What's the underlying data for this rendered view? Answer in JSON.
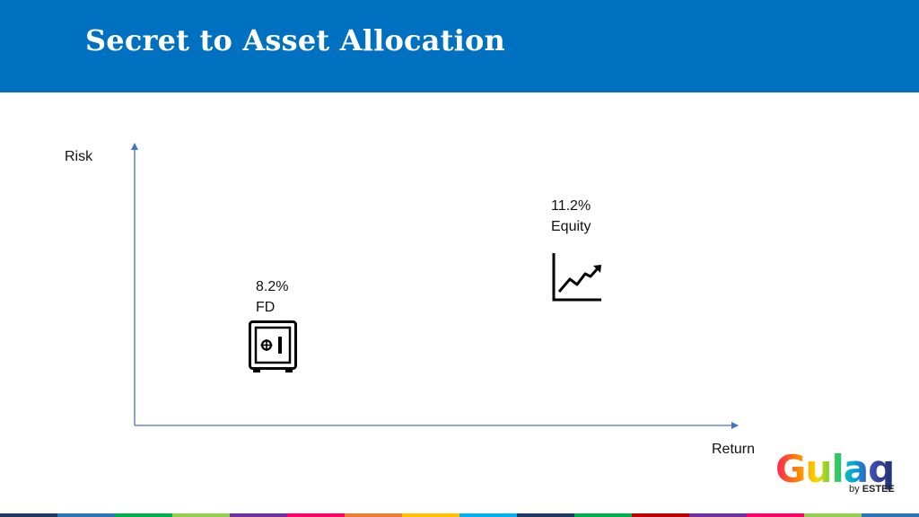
{
  "header": {
    "title": "Secret to Asset Allocation",
    "background": "#0070c0"
  },
  "diagram": {
    "y_axis_label": "Risk",
    "x_axis_label": "Return",
    "axis_color": "#4472c4",
    "items": [
      {
        "value": "8.2%",
        "name": "FD",
        "icon": "safe-icon"
      },
      {
        "value": "11.2%",
        "name": "Equity",
        "icon": "line-chart-icon"
      }
    ]
  },
  "logo": {
    "word": "Gulaq",
    "by_prefix": "by",
    "by_brand": "ESTEE"
  },
  "footer_strip_colors": [
    "#1f3864",
    "#2e75b6",
    "#00b050",
    "#92d050",
    "#7030a0",
    "#ff0066",
    "#ed7d31",
    "#ffc000",
    "#00b0f0",
    "#1f3864",
    "#00b050",
    "#c00000",
    "#7030a0",
    "#ff0066",
    "#92d050",
    "#2e75b6"
  ]
}
